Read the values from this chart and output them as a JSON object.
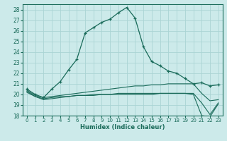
{
  "xlabel": "Humidex (Indice chaleur)",
  "bg_color": "#cceaea",
  "grid_color": "#aad4d4",
  "line_color": "#1a6b5a",
  "xlim": [
    -0.5,
    23.5
  ],
  "ylim": [
    18,
    28.5
  ],
  "yticks": [
    18,
    19,
    20,
    21,
    22,
    23,
    24,
    25,
    26,
    27,
    28
  ],
  "xticks": [
    0,
    1,
    2,
    3,
    4,
    5,
    6,
    7,
    8,
    9,
    10,
    11,
    12,
    13,
    14,
    15,
    16,
    17,
    18,
    19,
    20,
    21,
    22,
    23
  ],
  "series": [
    {
      "x": [
        0,
        1,
        2,
        3,
        4,
        5,
        6,
        7,
        8,
        9,
        10,
        11,
        12,
        13,
        14,
        15,
        16,
        17,
        18,
        19,
        20,
        21,
        22,
        23
      ],
      "y": [
        20.5,
        20.0,
        19.7,
        20.5,
        21.2,
        22.3,
        23.3,
        25.8,
        26.3,
        26.8,
        27.1,
        27.7,
        28.2,
        27.2,
        24.5,
        23.1,
        22.7,
        22.2,
        22.0,
        21.5,
        21.0,
        21.1,
        20.8,
        20.9
      ],
      "marker": true
    },
    {
      "x": [
        0,
        1,
        2,
        3,
        4,
        5,
        6,
        7,
        8,
        9,
        10,
        11,
        12,
        13,
        14,
        15,
        16,
        17,
        18,
        19,
        20,
        21,
        22,
        23
      ],
      "y": [
        20.4,
        19.9,
        19.7,
        19.8,
        19.9,
        20.0,
        20.1,
        20.2,
        20.3,
        20.4,
        20.5,
        20.6,
        20.7,
        20.8,
        20.8,
        20.9,
        20.9,
        21.0,
        21.0,
        21.0,
        21.0,
        20.1,
        19.4,
        19.5
      ],
      "marker": false
    },
    {
      "x": [
        0,
        1,
        2,
        3,
        4,
        5,
        6,
        7,
        8,
        9,
        10,
        11,
        12,
        13,
        14,
        15,
        16,
        17,
        18,
        19,
        20,
        21,
        22,
        23
      ],
      "y": [
        20.3,
        19.8,
        19.6,
        19.7,
        19.8,
        19.8,
        19.9,
        19.9,
        19.9,
        20.0,
        20.0,
        20.0,
        20.0,
        20.0,
        20.0,
        20.0,
        20.1,
        20.1,
        20.1,
        20.1,
        20.1,
        19.2,
        18.1,
        19.2
      ],
      "marker": false
    },
    {
      "x": [
        0,
        1,
        2,
        3,
        4,
        5,
        6,
        7,
        8,
        9,
        10,
        11,
        12,
        13,
        14,
        15,
        16,
        17,
        18,
        19,
        20,
        21,
        22,
        23
      ],
      "y": [
        20.2,
        19.8,
        19.5,
        19.6,
        19.7,
        19.8,
        19.9,
        19.9,
        20.0,
        20.0,
        20.0,
        20.1,
        20.1,
        20.1,
        20.1,
        20.1,
        20.1,
        20.1,
        20.1,
        20.1,
        20.0,
        18.0,
        17.9,
        19.1
      ],
      "marker": false
    }
  ]
}
